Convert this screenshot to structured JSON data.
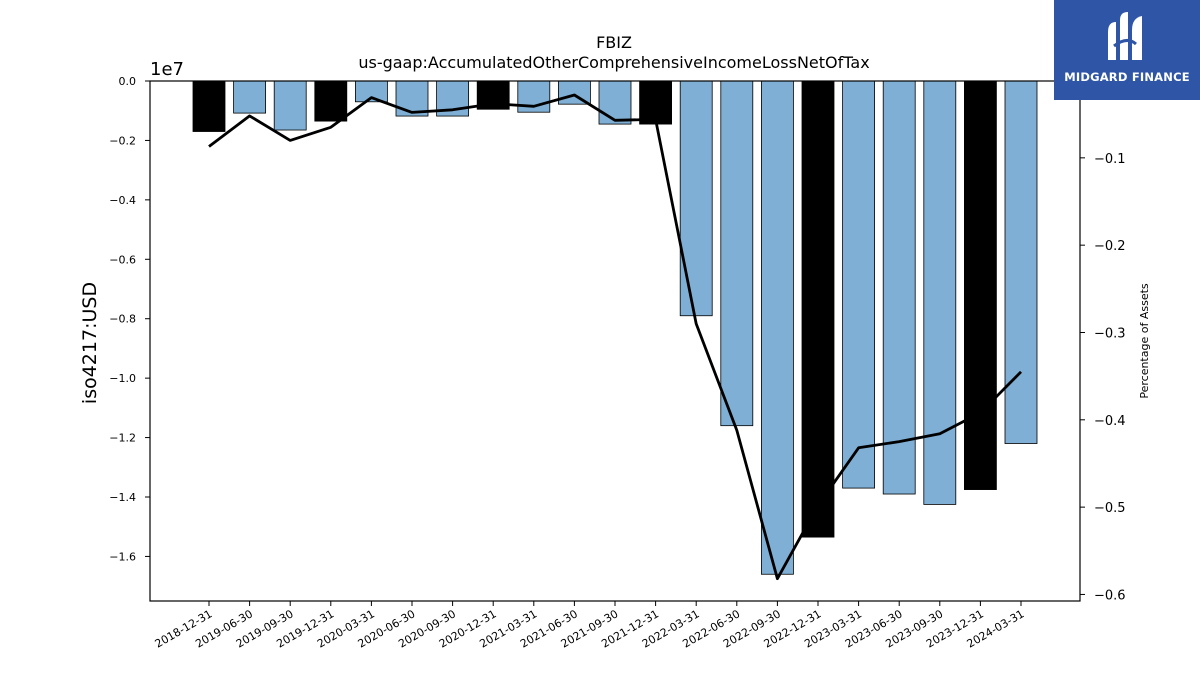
{
  "chart_data": {
    "type": "bar",
    "title": "FBIZ",
    "subtitle": "us-gaap:AccumulatedOtherComprehensiveIncomeLossNetOfTax",
    "ylabel": "iso4217:USD",
    "y_multiplier_label": "1e7",
    "y2label": "Percentage of Assets",
    "categories": [
      "2018-12-31",
      "2019-06-30",
      "2019-09-30",
      "2019-12-31",
      "2020-03-31",
      "2020-06-30",
      "2020-09-30",
      "2020-12-31",
      "2021-03-31",
      "2021-06-30",
      "2021-09-30",
      "2021-12-31",
      "2022-03-31",
      "2022-06-30",
      "2022-09-30",
      "2022-12-31",
      "2023-03-31",
      "2023-06-30",
      "2023-09-30",
      "2023-12-31",
      "2024-03-31"
    ],
    "series": [
      {
        "values": [
          -1.7,
          -1.08,
          -1.65,
          -1.35,
          -0.7,
          -1.18,
          -1.18,
          -0.95,
          -1.05,
          -0.78,
          -1.45,
          -1.45,
          -7.9,
          -11.6,
          -16.6,
          -15.35,
          -13.7,
          -13.9,
          -14.25,
          -13.75,
          -12.2
        ],
        "colors": [
          "#000000",
          "#7fafd4",
          "#7fafd4",
          "#000000",
          "#7fafd4",
          "#7fafd4",
          "#7fafd4",
          "#000000",
          "#7fafd4",
          "#7fafd4",
          "#7fafd4",
          "#000000",
          "#7fafd4",
          "#7fafd4",
          "#7fafd4",
          "#000000",
          "#7fafd4",
          "#7fafd4",
          "#7fafd4",
          "#000000",
          "#7fafd4"
        ]
      },
      {
        "axis": "right",
        "type": "line",
        "values": [
          -0.087,
          -0.052,
          -0.08,
          -0.065,
          -0.031,
          -0.048,
          -0.045,
          -0.038,
          -0.041,
          -0.028,
          -0.057,
          -0.056,
          -0.29,
          -0.412,
          -0.582,
          -0.498,
          -0.432,
          -0.425,
          -0.416,
          -0.392,
          -0.345
        ]
      }
    ],
    "ylim": [
      -17.5,
      0
    ],
    "y2lim": [
      -0.6075,
      -0.012
    ],
    "yticks": [
      "0.0",
      "−0.2",
      "−0.4",
      "−0.6",
      "−0.8",
      "−1.0",
      "−1.2",
      "−1.4",
      "−1.6"
    ],
    "y2ticks": [
      "−0.1",
      "−0.2",
      "−0.3",
      "−0.4",
      "−0.5",
      "−0.6"
    ],
    "bar_edge_color": "#000000",
    "line_color": "#000000"
  },
  "logo": {
    "text": "MIDGARD FINANCE",
    "background": "#2f56a6"
  }
}
